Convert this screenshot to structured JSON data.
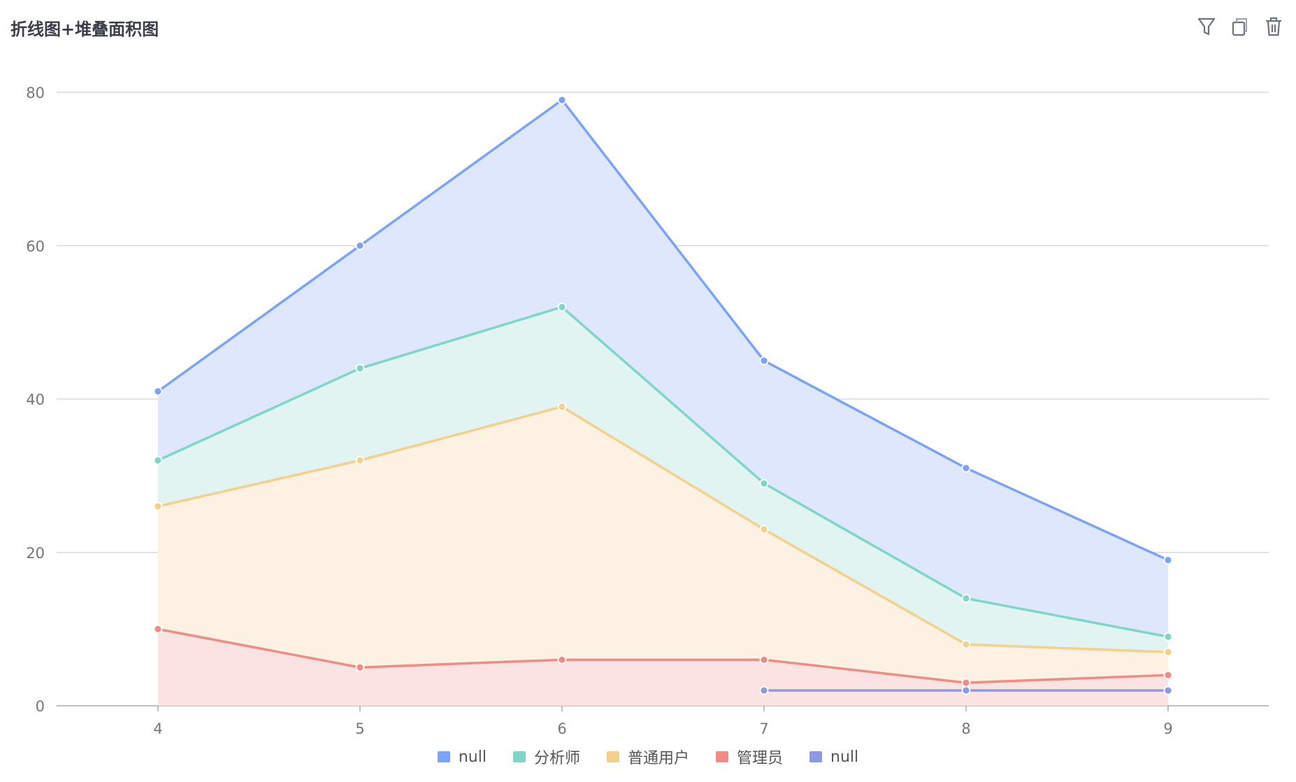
{
  "header": {
    "title": "折线图+堆叠面积图"
  },
  "toolbar": {
    "icons": [
      "filter-icon",
      "copy-icon",
      "trash-icon"
    ]
  },
  "chart_data": {
    "type": "area",
    "stacked": true,
    "title": "折线图+堆叠面积图",
    "x": [
      "4",
      "5",
      "6",
      "7",
      "8",
      "9"
    ],
    "ylim": [
      0,
      80
    ],
    "yticks": [
      0,
      20,
      40,
      60,
      80
    ],
    "grid": true,
    "legend_position": "bottom",
    "series": [
      {
        "name": "管理员",
        "color": "#f08c86",
        "fill": "#fce3e3",
        "values": [
          10,
          5,
          6,
          6,
          3,
          4
        ]
      },
      {
        "name": "普通用户",
        "color": "#f5cf8c",
        "fill": "#fcf1e2",
        "values": [
          16,
          27,
          33,
          17,
          5,
          3
        ]
      },
      {
        "name": "分析师",
        "color": "#7fd6c6",
        "fill": "#e1f4f1",
        "values": [
          6,
          12,
          13,
          6,
          6,
          2
        ]
      },
      {
        "name": "null",
        "color": "#7ba3f7",
        "fill": "#dfe7fc",
        "values": [
          9,
          16,
          27,
          16,
          17,
          10
        ]
      },
      {
        "name": "null",
        "color": "#8f99e3",
        "fill": "#e3e4f7",
        "stacked": false,
        "values": [
          null,
          null,
          null,
          2,
          2,
          2
        ]
      }
    ],
    "legend_order": [
      3,
      2,
      1,
      0,
      4
    ]
  }
}
